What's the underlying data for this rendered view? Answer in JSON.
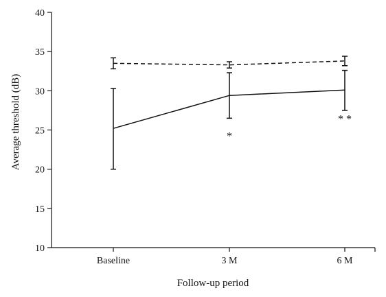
{
  "chart_data": {
    "type": "line",
    "title": "",
    "xlabel": "Follow-up period",
    "ylabel": "Average threshold (dB)",
    "categories": [
      "Baseline",
      "3 M",
      "6 M"
    ],
    "ylim": [
      10,
      40
    ],
    "yticks": [
      10,
      15,
      20,
      25,
      30,
      35,
      40
    ],
    "grid": false,
    "legend": "none",
    "series": [
      {
        "style": "dashed",
        "values": [
          33.5,
          33.3,
          33.8
        ],
        "error_low": [
          32.8,
          32.9,
          33.2
        ],
        "error_high": [
          34.2,
          33.7,
          34.4
        ]
      },
      {
        "style": "solid",
        "values": [
          25.2,
          29.4,
          30.1
        ],
        "error_low": [
          20.0,
          26.5,
          27.5
        ],
        "error_high": [
          30.3,
          32.3,
          32.6
        ]
      }
    ],
    "annotations": [
      {
        "category": "3 M",
        "text": "*",
        "y": 24.3
      },
      {
        "category": "6 M",
        "text": "* *",
        "y": 26.5
      }
    ]
  }
}
